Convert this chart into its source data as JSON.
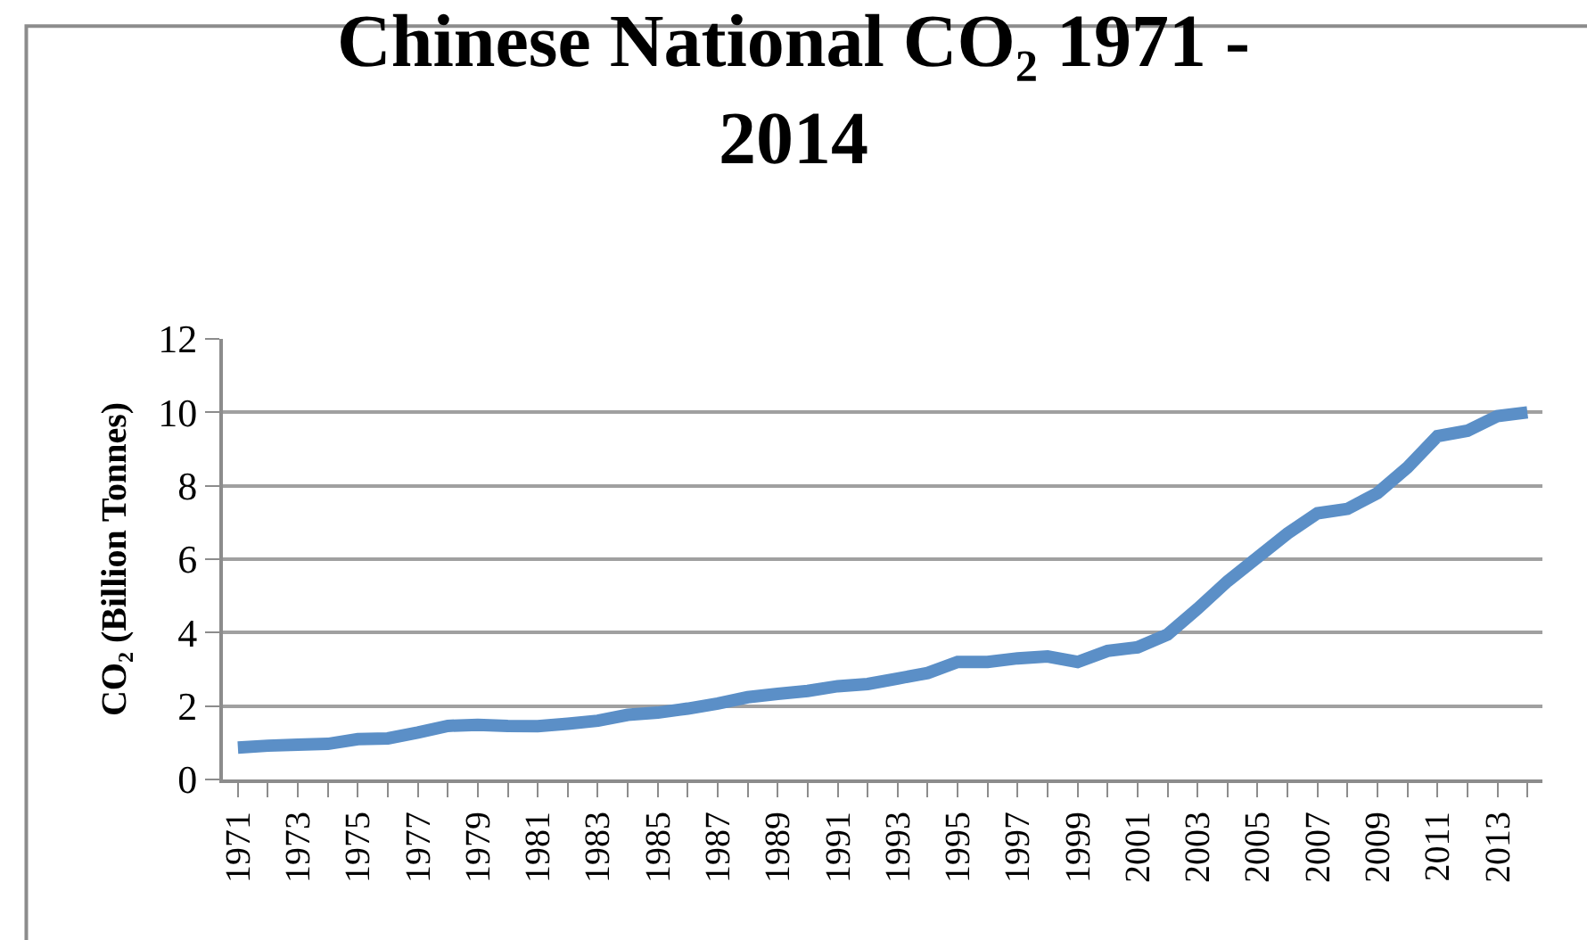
{
  "chart_data": {
    "type": "line",
    "title": "Chinese National CO₂ 1971 - 2014",
    "ylabel": "CO₂ (Billion Tonnes)",
    "categories": [
      "1971",
      null,
      "1973",
      null,
      "1975",
      null,
      "1977",
      null,
      "1979",
      null,
      "1981",
      null,
      "1983",
      null,
      "1985",
      null,
      "1987",
      null,
      "1989",
      null,
      "1991",
      null,
      "1993",
      null,
      "1995",
      null,
      "1997",
      null,
      "1999",
      null,
      "2001",
      null,
      "2003",
      null,
      "2005",
      null,
      "2007",
      null,
      "2009",
      null,
      "2011",
      null,
      "2013",
      null
    ],
    "series": [
      {
        "color": "#5b8fc7",
        "values": [
          0.87,
          0.92,
          0.95,
          0.97,
          1.1,
          1.12,
          1.28,
          1.46,
          1.49,
          1.46,
          1.45,
          1.52,
          1.6,
          1.76,
          1.82,
          1.93,
          2.07,
          2.24,
          2.33,
          2.41,
          2.54,
          2.6,
          2.75,
          2.9,
          3.2,
          3.2,
          3.3,
          3.35,
          3.2,
          3.5,
          3.6,
          3.95,
          4.65,
          5.4,
          6.05,
          6.7,
          7.25,
          7.37,
          7.8,
          8.5,
          9.35,
          9.5,
          9.9,
          10.0
        ]
      }
    ],
    "ylim": [
      0,
      12
    ],
    "yticks": [
      0,
      2,
      4,
      6,
      8,
      10,
      12
    ],
    "grid": "y",
    "marker": "none",
    "line_style": "solid"
  }
}
